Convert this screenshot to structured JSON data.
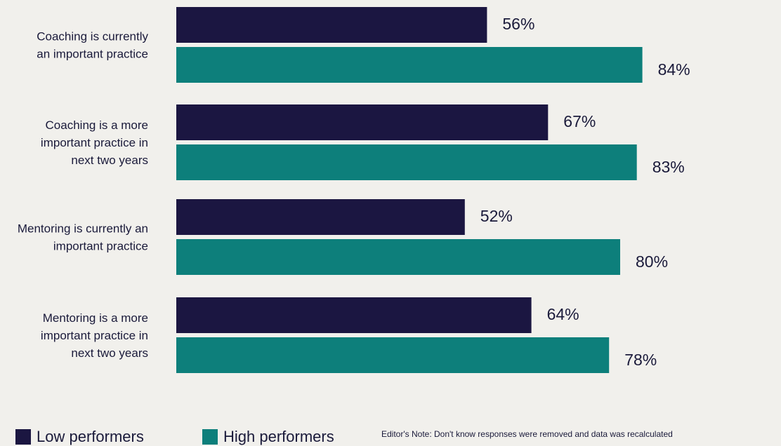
{
  "chart_data": {
    "type": "bar",
    "orientation": "horizontal",
    "categories": [
      [
        "Coaching is currently",
        "an important practice"
      ],
      [
        "Coaching is a more",
        "important practice in",
        "next two years"
      ],
      [
        "Mentoring is currently an",
        "important practice"
      ],
      [
        "Mentoring is a more",
        "important practice in",
        "next two years"
      ]
    ],
    "series": [
      {
        "name": "Low performers",
        "color": "#1b1641",
        "values": [
          56,
          67,
          52,
          64
        ]
      },
      {
        "name": "High performers",
        "color": "#0d7f7b",
        "values": [
          84,
          83,
          80,
          78
        ]
      }
    ],
    "value_labels": [
      [
        "56%",
        "67%",
        "52%",
        "64%"
      ],
      [
        "84%",
        "83%",
        "80%",
        "78%"
      ]
    ],
    "xlim": [
      0,
      100
    ],
    "legend": "bottom-left"
  },
  "legend": {
    "low_label": "Low performers",
    "high_label": "High performers"
  },
  "note": "Editor's Note: Don't know responses were removed and data was recalculated"
}
